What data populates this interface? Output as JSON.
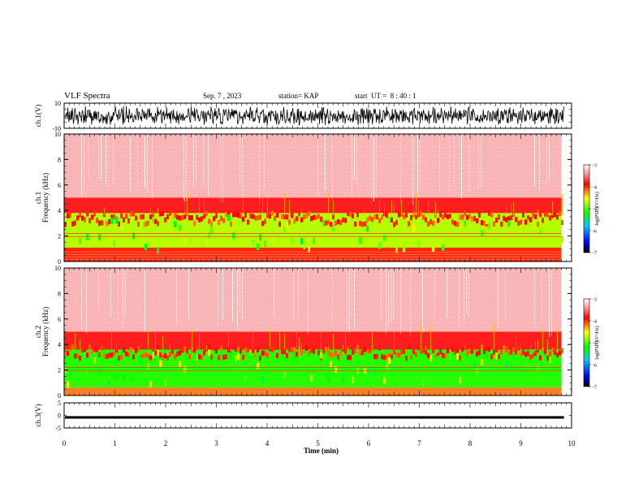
{
  "header": {
    "title": "VLF Spectra",
    "date": "Sep. 7 , 2023",
    "station": "station= KAP",
    "start": "start  UT =  8 : 40 : 1"
  },
  "chart_data": [
    {
      "type": "line",
      "panel": "ch1-waveform",
      "ylabel": "ch.1(V)",
      "ylim": [
        -10,
        10
      ],
      "y_ticks": [
        "10",
        "-10"
      ],
      "xlim": [
        0,
        10
      ],
      "content": "dense oscillating waveform, amplitude roughly -8 to 8 V",
      "color": "#000000"
    },
    {
      "type": "heatmap",
      "panel": "ch1-spectrogram",
      "ylabel": "ch.1 Frequency (kHz)",
      "ylim": [
        0,
        10
      ],
      "y_ticks": [
        "0",
        "2",
        "4",
        "6",
        "8",
        "10"
      ],
      "xlim": [
        0,
        9.8
      ],
      "colorbar": {
        "label": "log(PSD)(V²/Hz)",
        "range": [
          -7,
          -3
        ],
        "ticks": [
          "-3",
          "-4",
          "-5",
          "-6",
          "-7"
        ]
      },
      "bands": [
        {
          "from_khz": 0,
          "to_khz": 1.1,
          "level": -4.0
        },
        {
          "from_khz": 1.1,
          "to_khz": 3.8,
          "level": -4.7
        },
        {
          "from_khz": 3.8,
          "to_khz": 5.0,
          "level": -3.8
        },
        {
          "from_khz": 5.0,
          "to_khz": 10,
          "level": -3.3
        }
      ]
    },
    {
      "type": "heatmap",
      "panel": "ch2-spectrogram",
      "ylabel": "ch.2 Frequency (kHz)",
      "ylim": [
        0,
        10
      ],
      "y_ticks": [
        "0",
        "2",
        "4",
        "6",
        "8",
        "10"
      ],
      "xlim": [
        0,
        9.8
      ],
      "colorbar": {
        "label": "log(PSD)(V²/Hz)",
        "range": [
          -7,
          -3
        ],
        "ticks": [
          "-3",
          "-4",
          "-5",
          "-6",
          "-7"
        ]
      },
      "bands": [
        {
          "from_khz": 0,
          "to_khz": 0.6,
          "level": -4.2
        },
        {
          "from_khz": 0.6,
          "to_khz": 3.6,
          "level": -5.1
        },
        {
          "from_khz": 3.6,
          "to_khz": 5.0,
          "level": -3.8
        },
        {
          "from_khz": 5.0,
          "to_khz": 10,
          "level": -3.3
        }
      ]
    },
    {
      "type": "line",
      "panel": "ch3-waveform",
      "ylabel": "ch.3(V)",
      "ylim": [
        -5,
        5
      ],
      "y_ticks": [
        "5",
        "0",
        "-5"
      ],
      "xlim": [
        0,
        10
      ],
      "content": "flat thick band near -0.8 V",
      "color": "#000000"
    }
  ],
  "x_axis": {
    "label": "Time (min)",
    "range": [
      0,
      10
    ],
    "ticks": [
      "0",
      "1",
      "2",
      "3",
      "4",
      "5",
      "6",
      "7",
      "8",
      "9",
      "10"
    ]
  }
}
